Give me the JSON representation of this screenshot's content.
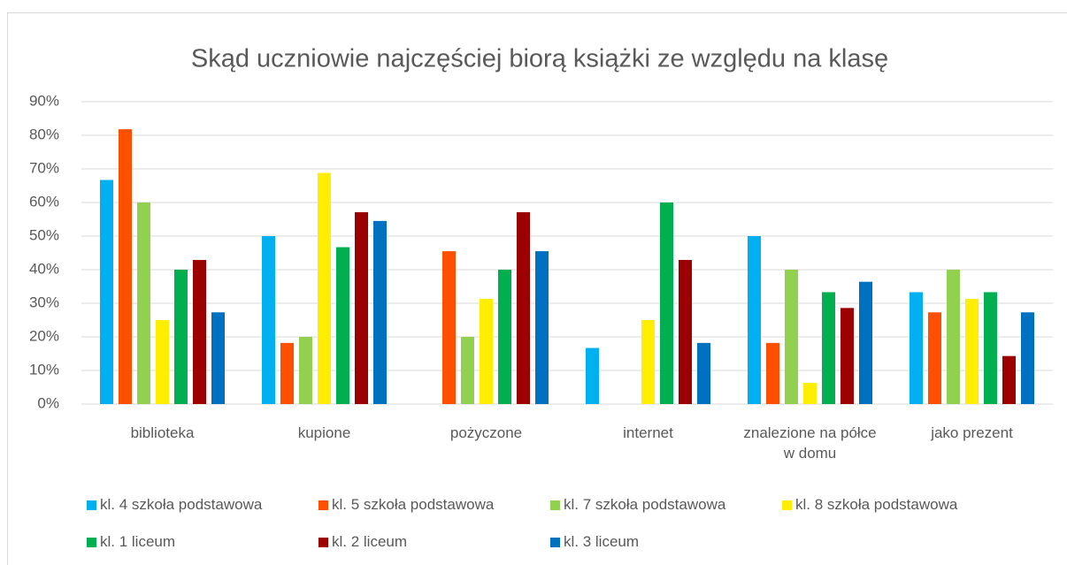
{
  "chart_data": {
    "type": "bar",
    "title": "Skąd uczniowie najczęściej biorą książki ze względu na klasę",
    "categories": [
      "biblioteka",
      "kupione",
      "pożyczone",
      "internet",
      "znalezione na półce w domu",
      "jako prezent"
    ],
    "series": [
      {
        "name": "kl. 4 szkoła podstawowa",
        "color": "#00b0f0",
        "values": [
          66.7,
          50,
          0,
          16.7,
          50,
          33.3
        ]
      },
      {
        "name": "kl. 5 szkoła podstawowa",
        "color": "#fe5000",
        "values": [
          81.8,
          18.2,
          45.5,
          0,
          18.2,
          27.3
        ]
      },
      {
        "name": "kl. 7 szkoła podstawowa",
        "color": "#92d050",
        "values": [
          60,
          20,
          20,
          0,
          40,
          40
        ]
      },
      {
        "name": "kl. 8 szkoła podstawowa",
        "color": "#ffee00",
        "values": [
          25,
          68.8,
          31.3,
          25,
          6.3,
          31.3
        ]
      },
      {
        "name": "kl. 1 liceum",
        "color": "#00b050",
        "values": [
          40,
          46.7,
          40,
          60,
          33.3,
          33.3
        ]
      },
      {
        "name": "kl. 2 liceum",
        "color": "#9c0000",
        "values": [
          42.9,
          57.1,
          57.1,
          42.9,
          28.6,
          14.3
        ]
      },
      {
        "name": "kl. 3 liceum",
        "color": "#0070c0",
        "values": [
          27.3,
          54.5,
          45.5,
          18.2,
          36.4,
          27.3
        ]
      }
    ],
    "ylim": [
      0,
      90
    ],
    "yticks": [
      {
        "value": 0,
        "label": "0%"
      },
      {
        "value": 10,
        "label": "10%"
      },
      {
        "value": 20,
        "label": "20%"
      },
      {
        "value": 30,
        "label": "30%"
      },
      {
        "value": 40,
        "label": "40%"
      },
      {
        "value": 50,
        "label": "50%"
      },
      {
        "value": 60,
        "label": "60%"
      },
      {
        "value": 70,
        "label": "70%"
      },
      {
        "value": 80,
        "label": "80%"
      },
      {
        "value": 90,
        "label": "90%"
      }
    ],
    "grid": true,
    "legend": "bottom"
  }
}
